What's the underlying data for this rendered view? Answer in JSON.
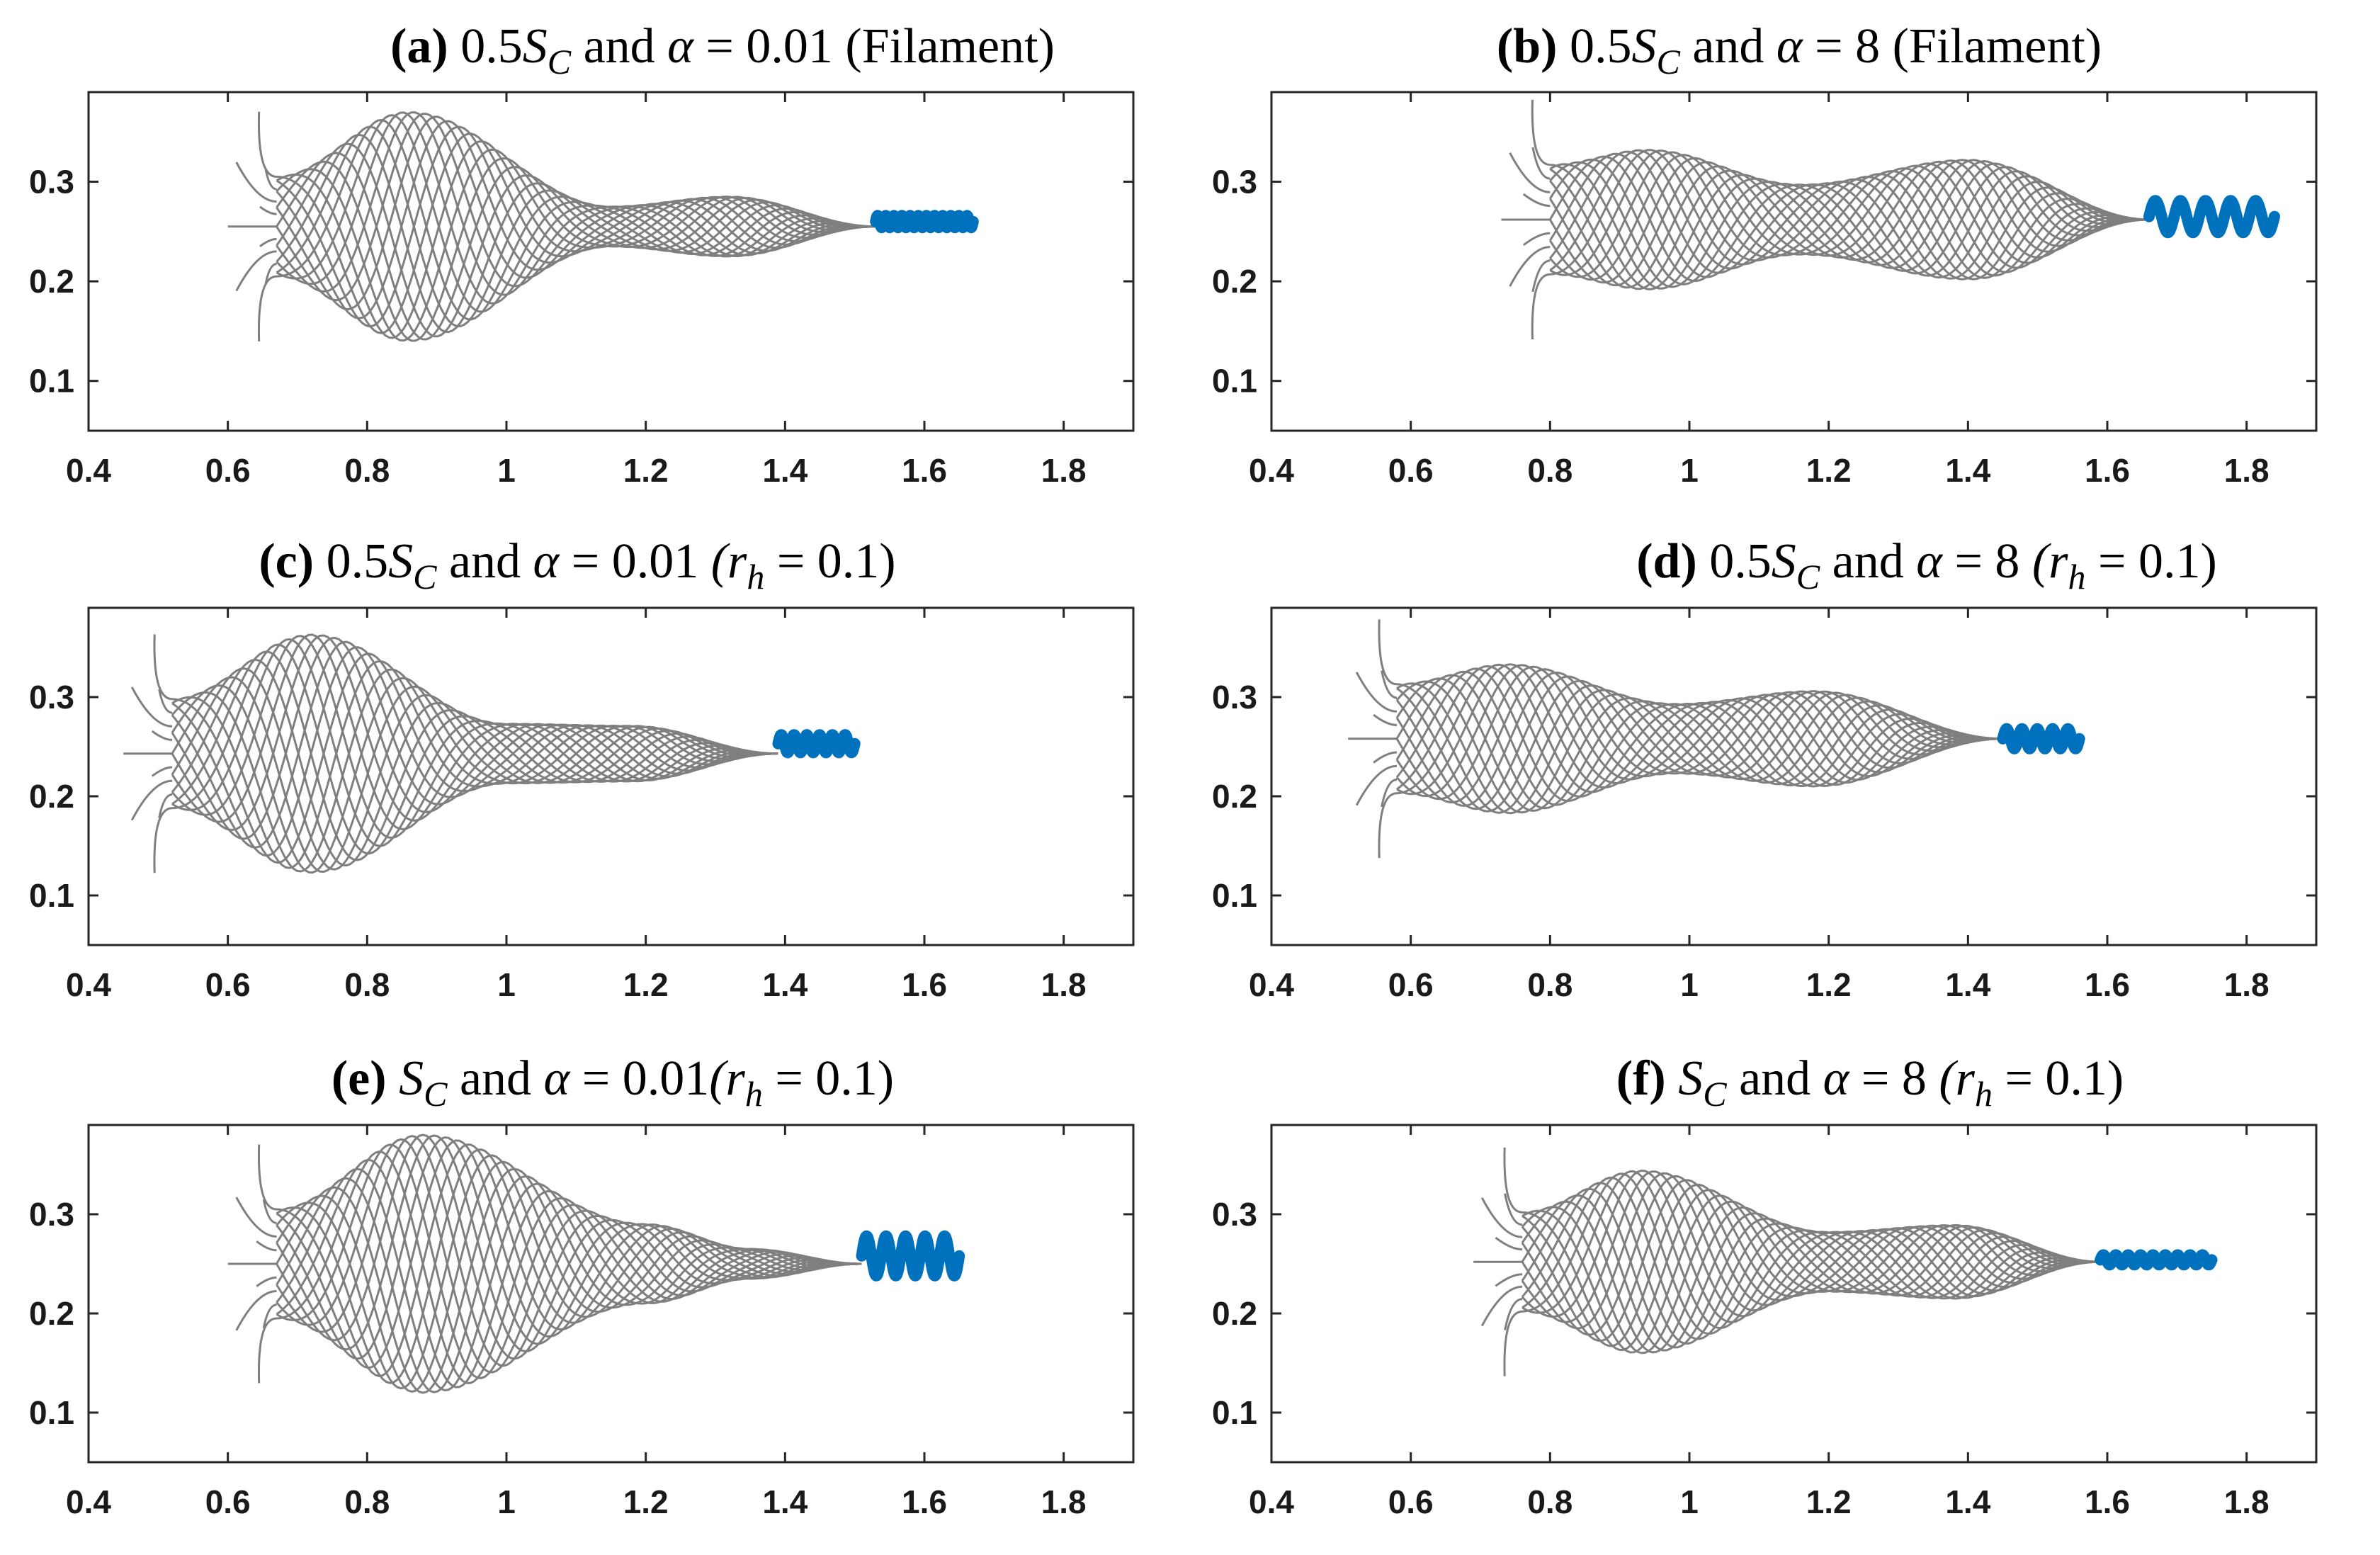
{
  "colors": {
    "wave": "#7f7f7f",
    "tail": "#0072bd",
    "axis": "#262626",
    "text": "#000000"
  },
  "chart_data": [
    {
      "type": "line",
      "panel": "a",
      "title": {
        "letter": "(a)",
        "pre": " 0.5",
        "S": "S",
        "Ssub": "C",
        "mid": " and ",
        "alpha": "α",
        "eq": " = 0.01 ",
        "rh": "",
        "rhsub": "",
        "rheq": "",
        "tail": "(Filament)"
      },
      "xlim": [
        0.4,
        1.9
      ],
      "ylim": [
        0.05,
        0.39
      ],
      "xticks": [
        0.4,
        0.6,
        0.8,
        1,
        1.2,
        1.4,
        1.6,
        1.8
      ],
      "xtick_labels": [
        "0.4",
        "0.6",
        "0.8",
        "1",
        "1.2",
        "1.4",
        "1.6",
        "1.8"
      ],
      "yticks": [
        0.1,
        0.2,
        0.3
      ],
      "ytick_labels": [
        "0.1",
        "0.2",
        "0.3"
      ],
      "envelope": {
        "x_start": 0.67,
        "x_end": 1.53,
        "center": 0.255,
        "nodes": [
          [
            0.67,
            0.05
          ],
          [
            0.86,
            0.115
          ],
          [
            1.15,
            0.02
          ],
          [
            1.32,
            0.03
          ],
          [
            1.53,
            0
          ]
        ],
        "n_lines": 16
      },
      "hairs": {
        "x": 0.67,
        "y": 0.255,
        "half_height": 0.05,
        "lengths": [
          0.07,
          0.025
        ],
        "n": 9
      },
      "tail_helix": {
        "x_start": 1.53,
        "x_end": 1.67,
        "center": 0.26,
        "amplitude": 0.006,
        "coils": 12
      }
    },
    {
      "type": "line",
      "panel": "b",
      "title": {
        "letter": "(b)",
        "pre": " 0.5",
        "S": "S",
        "Ssub": "C",
        "mid": " and ",
        "alpha": "α",
        "eq": " = 8 ",
        "rh": "",
        "rhsub": "",
        "rheq": "",
        "tail": "(Filament)"
      },
      "xlim": [
        0.4,
        1.9
      ],
      "ylim": [
        0.05,
        0.39
      ],
      "xticks": [
        0.4,
        0.6,
        0.8,
        1,
        1.2,
        1.4,
        1.6,
        1.8
      ],
      "xtick_labels": [
        "0.4",
        "0.6",
        "0.8",
        "1",
        "1.2",
        "1.4",
        "1.6",
        "1.8"
      ],
      "yticks": [
        0.1,
        0.2,
        0.3
      ],
      "ytick_labels": [
        "0.1",
        "0.2",
        "0.3"
      ],
      "envelope": {
        "x_start": 0.8,
        "x_end": 1.66,
        "center": 0.262,
        "nodes": [
          [
            0.8,
            0.055
          ],
          [
            0.94,
            0.07
          ],
          [
            1.16,
            0.035
          ],
          [
            1.4,
            0.06
          ],
          [
            1.66,
            0
          ]
        ],
        "n_lines": 16
      },
      "hairs": {
        "x": 0.8,
        "y": 0.262,
        "half_height": 0.055,
        "lengths": [
          0.07,
          0.04
        ],
        "n": 9
      },
      "tail_helix": {
        "x_start": 1.66,
        "x_end": 1.84,
        "center": 0.265,
        "amplitude": 0.016,
        "coils": 5
      }
    },
    {
      "type": "line",
      "panel": "c",
      "title": {
        "letter": "(c)",
        "pre": " 0.5",
        "S": "S",
        "Ssub": "C",
        "mid": " and ",
        "alpha": "α",
        "eq": " = 0.01 ",
        "rh": "(r",
        "rhsub": "h",
        "rheq": " = 0.1)",
        "tail": ""
      },
      "xlim": [
        0.4,
        1.9
      ],
      "ylim": [
        0.05,
        0.39
      ],
      "xticks": [
        0.4,
        0.6,
        0.8,
        1,
        1.2,
        1.4,
        1.6,
        1.8
      ],
      "xtick_labels": [
        "0.4",
        "0.6",
        "0.8",
        "1",
        "1.2",
        "1.4",
        "1.6",
        "1.8"
      ],
      "yticks": [
        0.1,
        0.2,
        0.3
      ],
      "ytick_labels": [
        "0.1",
        "0.2",
        "0.3"
      ],
      "envelope": {
        "x_start": 0.52,
        "x_end": 1.39,
        "center": 0.243,
        "nodes": [
          [
            0.52,
            0.055
          ],
          [
            0.72,
            0.12
          ],
          [
            1.0,
            0.03
          ],
          [
            1.18,
            0.028
          ],
          [
            1.39,
            0
          ]
        ],
        "n_lines": 16
      },
      "hairs": {
        "x": 0.52,
        "y": 0.243,
        "half_height": 0.055,
        "lengths": [
          0.07,
          0.03
        ],
        "n": 9
      },
      "tail_helix": {
        "x_start": 1.39,
        "x_end": 1.5,
        "center": 0.253,
        "amplitude": 0.009,
        "coils": 6
      }
    },
    {
      "type": "line",
      "panel": "d",
      "title": {
        "letter": "(d)",
        "pre": " 0.5",
        "S": "S",
        "Ssub": "C",
        "mid": " and ",
        "alpha": "α",
        "eq": " = 8 ",
        "rh": "(r",
        "rhsub": "h",
        "rheq": " = 0.1)",
        "tail": ""
      },
      "xlim": [
        0.4,
        1.9
      ],
      "ylim": [
        0.05,
        0.39
      ],
      "xticks": [
        0.4,
        0.6,
        0.8,
        1,
        1.2,
        1.4,
        1.6,
        1.8
      ],
      "xtick_labels": [
        "0.4",
        "0.6",
        "0.8",
        "1",
        "1.2",
        "1.4",
        "1.6",
        "1.8"
      ],
      "yticks": [
        0.1,
        0.2,
        0.3
      ],
      "ytick_labels": [
        "0.1",
        "0.2",
        "0.3"
      ],
      "envelope": {
        "x_start": 0.58,
        "x_end": 1.45,
        "center": 0.258,
        "nodes": [
          [
            0.58,
            0.055
          ],
          [
            0.74,
            0.075
          ],
          [
            0.98,
            0.035
          ],
          [
            1.18,
            0.048
          ],
          [
            1.45,
            0
          ]
        ],
        "n_lines": 16
      },
      "hairs": {
        "x": 0.58,
        "y": 0.258,
        "half_height": 0.055,
        "lengths": [
          0.07,
          0.035
        ],
        "n": 9
      },
      "tail_helix": {
        "x_start": 1.45,
        "x_end": 1.56,
        "center": 0.258,
        "amplitude": 0.01,
        "coils": 5
      }
    },
    {
      "type": "line",
      "panel": "e",
      "title": {
        "letter": "(e)",
        "pre": " ",
        "S": "S",
        "Ssub": "C",
        "mid": " and ",
        "alpha": "α",
        "eq": " = 0.01",
        "rh": "(r",
        "rhsub": "h",
        "rheq": " = 0.1)",
        "tail": ""
      },
      "xlim": [
        0.4,
        1.9
      ],
      "ylim": [
        0.05,
        0.39
      ],
      "xticks": [
        0.4,
        0.6,
        0.8,
        1,
        1.2,
        1.4,
        1.6,
        1.8
      ],
      "xtick_labels": [
        "0.4",
        "0.6",
        "0.8",
        "1",
        "1.2",
        "1.4",
        "1.6",
        "1.8"
      ],
      "yticks": [
        0.1,
        0.2,
        0.3
      ],
      "ytick_labels": [
        "0.1",
        "0.2",
        "0.3"
      ],
      "envelope": {
        "x_start": 0.67,
        "x_end": 1.51,
        "center": 0.25,
        "nodes": [
          [
            0.67,
            0.055
          ],
          [
            0.88,
            0.13
          ],
          [
            1.2,
            0.04
          ],
          [
            1.35,
            0.015
          ],
          [
            1.51,
            0
          ]
        ],
        "n_lines": 16
      },
      "hairs": {
        "x": 0.67,
        "y": 0.25,
        "half_height": 0.055,
        "lengths": [
          0.07,
          0.03
        ],
        "n": 9
      },
      "tail_helix": {
        "x_start": 1.51,
        "x_end": 1.65,
        "center": 0.258,
        "amplitude": 0.02,
        "coils": 5
      }
    },
    {
      "type": "line",
      "panel": "f",
      "title": {
        "letter": "(f)",
        "pre": " ",
        "S": "S",
        "Ssub": "C",
        "mid": " and ",
        "alpha": "α",
        "eq": " = 8 ",
        "rh": "(r",
        "rhsub": "h",
        "rheq": " = 0.1)",
        "tail": ""
      },
      "xlim": [
        0.4,
        1.9
      ],
      "ylim": [
        0.05,
        0.39
      ],
      "xticks": [
        0.4,
        0.6,
        0.8,
        1,
        1.2,
        1.4,
        1.6,
        1.8
      ],
      "xtick_labels": [
        "0.4",
        "0.6",
        "0.8",
        "1",
        "1.2",
        "1.4",
        "1.6",
        "1.8"
      ],
      "yticks": [
        0.1,
        0.2,
        0.3
      ],
      "ytick_labels": [
        "0.1",
        "0.2",
        "0.3"
      ],
      "envelope": {
        "x_start": 0.76,
        "x_end": 1.59,
        "center": 0.252,
        "nodes": [
          [
            0.76,
            0.05
          ],
          [
            0.93,
            0.092
          ],
          [
            1.2,
            0.03
          ],
          [
            1.38,
            0.037
          ],
          [
            1.59,
            0
          ]
        ],
        "n_lines": 16
      },
      "hairs": {
        "x": 0.76,
        "y": 0.252,
        "half_height": 0.05,
        "lengths": [
          0.07,
          0.04
        ],
        "n": 9
      },
      "tail_helix": {
        "x_start": 1.59,
        "x_end": 1.75,
        "center": 0.254,
        "amplitude": 0.005,
        "coils": 9
      }
    }
  ]
}
